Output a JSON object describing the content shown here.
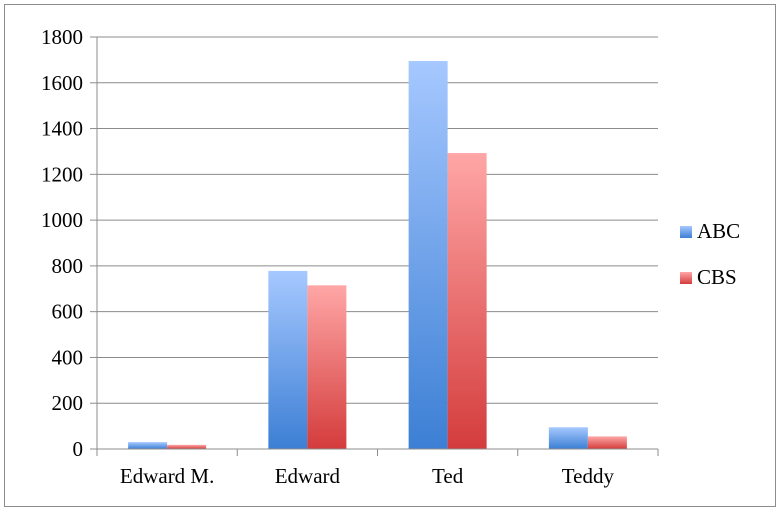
{
  "chart_data": {
    "type": "bar",
    "title": "",
    "xlabel": "",
    "ylabel": "",
    "categories": [
      "Edward M.",
      "Edward",
      "Ted",
      "Teddy"
    ],
    "series": [
      {
        "name": "ABC",
        "values": [
          30,
          778,
          1695,
          95
        ],
        "color_top": "#a6c8ff",
        "color_bottom": "#3c7fd4"
      },
      {
        "name": "CBS",
        "values": [
          18,
          715,
          1293,
          55
        ],
        "color_top": "#ffa6a6",
        "color_bottom": "#d43c3c"
      }
    ],
    "ylim": [
      0,
      1800
    ],
    "yticks": [
      0,
      200,
      400,
      600,
      800,
      1000,
      1200,
      1400,
      1600,
      1800
    ],
    "grid": true,
    "legend_position": "right"
  }
}
